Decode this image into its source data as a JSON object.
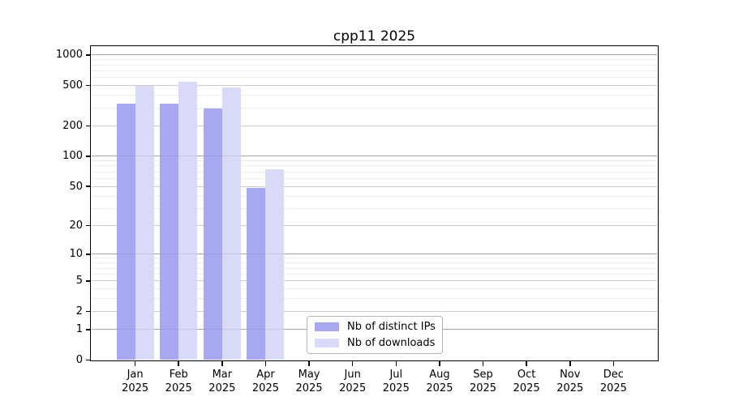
{
  "chart_data": {
    "type": "bar",
    "title": "cpp11 2025",
    "yscale": "log1p",
    "ylim": [
      0,
      1200
    ],
    "yticks": [
      1000,
      500,
      200,
      100,
      50,
      20,
      10,
      5,
      2,
      1,
      0
    ],
    "xlabel": "",
    "ylabel": "",
    "categories": [
      "Jan 2025",
      "Feb 2025",
      "Mar 2025",
      "Apr 2025",
      "May 2025",
      "Jun 2025",
      "Jul 2025",
      "Aug 2025",
      "Sep 2025",
      "Oct 2025",
      "Nov 2025",
      "Dec 2025"
    ],
    "series": [
      {
        "name": "Nb of distinct IPs",
        "color": "#a8a8f2",
        "values": [
          330,
          330,
          295,
          48,
          null,
          null,
          null,
          null,
          null,
          null,
          null,
          null
        ]
      },
      {
        "name": "Nb of downloads",
        "color": "#d9d9f8",
        "values": [
          494,
          545,
          475,
          74,
          null,
          null,
          null,
          null,
          null,
          null,
          null,
          null
        ]
      }
    ],
    "grid": {
      "power10_color": "#b0b0b0",
      "labeled_color": "#cccccc",
      "minor_color": "#ececec",
      "orientation": "horizontal"
    },
    "legend_position": "bottom-center"
  }
}
